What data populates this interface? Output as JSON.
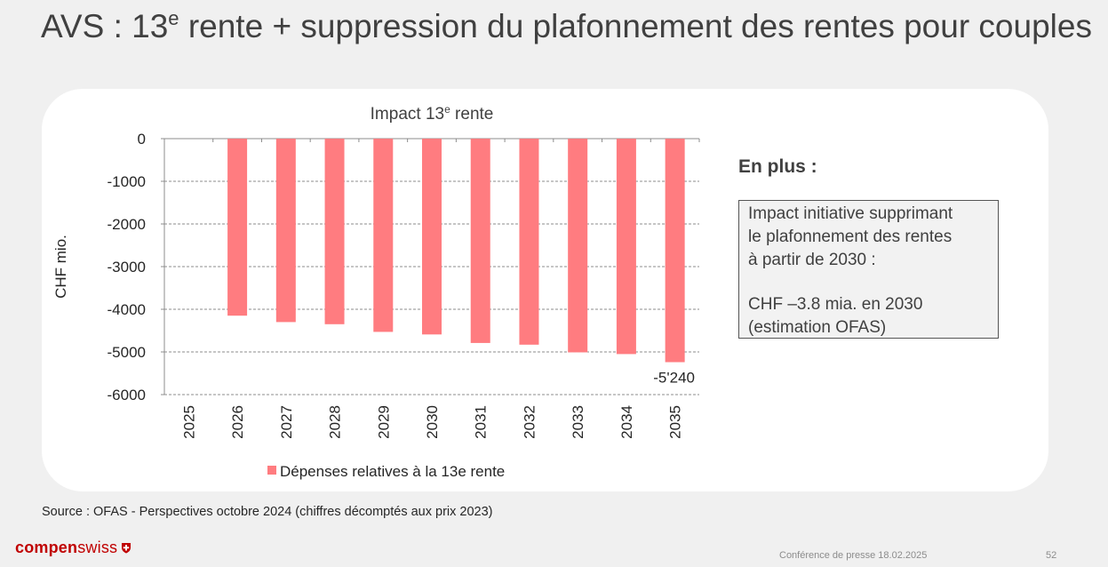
{
  "slide": {
    "title_main": "AVS : 13",
    "title_sup": "e",
    "title_rest": " rente + suppression du plafonnement des rentes pour couples"
  },
  "chart_data": {
    "type": "bar",
    "title": "Impact 13e rente",
    "title_main": "Impact 13",
    "title_sup": "e",
    "title_rest": " rente",
    "ylabel": "CHF mio.",
    "xlabel": "",
    "ylim": [
      -6000,
      0
    ],
    "yticks": [
      0,
      -1000,
      -2000,
      -3000,
      -4000,
      -5000,
      -6000
    ],
    "categories": [
      "2025",
      "2026",
      "2027",
      "2028",
      "2029",
      "2030",
      "2031",
      "2032",
      "2033",
      "2034",
      "2035"
    ],
    "series": [
      {
        "name": "Dépenses relatives à la 13e rente",
        "color": "#ff7c80",
        "values": [
          0,
          -4150,
          -4300,
          -4350,
          -4530,
          -4590,
          -4790,
          -4830,
          -5010,
          -5050,
          -5240
        ]
      }
    ],
    "data_labels": [
      {
        "category": "2035",
        "text": "-5'240"
      }
    ],
    "legend_position": "bottom",
    "grid": "horizontal-dashed"
  },
  "extra": {
    "heading": "En plus :",
    "box_lines": [
      "Impact initiative supprimant",
      "le plafonnement des rentes",
      "à partir de 2030 :"
    ],
    "box_lines_2": [
      "CHF –3.8 mia. en 2030",
      "(estimation OFAS)"
    ]
  },
  "source": "Source : OFAS - Perspectives octobre 2024 (chiffres décomptés aux prix 2023)",
  "footer": {
    "logo_part1": "compen",
    "logo_part2": "swiss",
    "logo_icon": "swiss-cross-shield-icon",
    "conference": "Conférence de presse 18.02.2025",
    "page_number": "52"
  }
}
